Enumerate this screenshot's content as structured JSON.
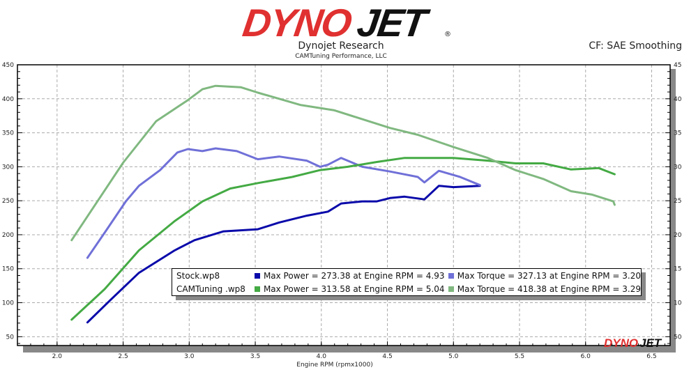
{
  "header": {
    "logo_text": "DYNOJET",
    "title": "Dynojet Research",
    "subtitle": "CAMTuning Performance, LLC",
    "correction": "CF: SAE Smoothing"
  },
  "legend": [
    {
      "file": "Stock.wp8",
      "power": "Max Power = 273.38 at Engine RPM = 4.93",
      "torque": "Max Torque = 327.13 at Engine RPM = 3.20",
      "power_color": "#0a0aaa",
      "torque_color": "#7070d8"
    },
    {
      "file": "CAMTuning .wp8",
      "power": "Max Power = 313.58 at Engine RPM = 5.04",
      "torque": "Max Torque = 418.38 at Engine RPM = 3.29",
      "power_color": "#44aa44",
      "torque_color": "#80b880"
    }
  ],
  "chart_data": {
    "type": "line",
    "xlabel": "Engine RPM (rpmx1000)",
    "ylabel": "",
    "xlim": [
      1.7,
      6.64
    ],
    "ylim": [
      37,
      450
    ],
    "xticks": [
      "2.0",
      "2.5",
      "3.0",
      "3.5",
      "4.0",
      "4.5",
      "5.0",
      "5.5",
      "6.0",
      "6.5"
    ],
    "yticks": [
      "50",
      "100",
      "150",
      "200",
      "250",
      "300",
      "350",
      "400",
      "450"
    ],
    "grid": true,
    "legend_position": "bottom-center",
    "series": [
      {
        "name": "Stock.wp8 Max Power",
        "color": "#0a0aaa",
        "x": [
          2.23,
          2.41,
          2.62,
          2.89,
          3.04,
          3.26,
          3.52,
          3.68,
          3.89,
          4.05,
          4.15,
          4.31,
          4.42,
          4.52,
          4.63,
          4.78,
          4.89,
          5.0,
          5.2
        ],
        "y": [
          71,
          105,
          144,
          177,
          192,
          205,
          208,
          218,
          228,
          234,
          246,
          249,
          249,
          254,
          256,
          252,
          272,
          270,
          272
        ]
      },
      {
        "name": "Stock.wp8 Max Torque",
        "color": "#7070d8",
        "x": [
          2.23,
          2.36,
          2.52,
          2.62,
          2.78,
          2.91,
          2.99,
          3.1,
          3.2,
          3.36,
          3.52,
          3.68,
          3.89,
          3.99,
          4.05,
          4.15,
          4.31,
          4.52,
          4.73,
          4.78,
          4.89,
          5.05,
          5.2
        ],
        "y": [
          166,
          203,
          249,
          272,
          295,
          321,
          326,
          323,
          327,
          323,
          311,
          315,
          309,
          300,
          303,
          313,
          300,
          293,
          285,
          277,
          294,
          285,
          273
        ]
      },
      {
        "name": "CAMTuning .wp8 Max Power",
        "color": "#44aa44",
        "x": [
          2.11,
          2.36,
          2.62,
          2.89,
          3.1,
          3.31,
          3.52,
          3.78,
          3.99,
          4.2,
          4.42,
          4.63,
          5.0,
          5.26,
          5.47,
          5.68,
          5.89,
          6.1,
          6.22
        ],
        "y": [
          75,
          120,
          177,
          220,
          249,
          268,
          276,
          285,
          295,
          300,
          307,
          313,
          313,
          309,
          305,
          305,
          296,
          298,
          289
        ]
      },
      {
        "name": "CAMTuning .wp8 Max Torque",
        "color": "#80b880",
        "x": [
          2.11,
          2.5,
          2.75,
          2.99,
          3.1,
          3.2,
          3.39,
          3.52,
          3.84,
          4.1,
          4.26,
          4.52,
          4.73,
          5.0,
          5.26,
          5.47,
          5.68,
          5.89,
          6.05,
          6.21,
          6.22
        ],
        "y": [
          192,
          306,
          367,
          398,
          414,
          419,
          417,
          409,
          391,
          383,
          373,
          357,
          347,
          329,
          313,
          295,
          282,
          264,
          259,
          249,
          244
        ]
      }
    ]
  }
}
